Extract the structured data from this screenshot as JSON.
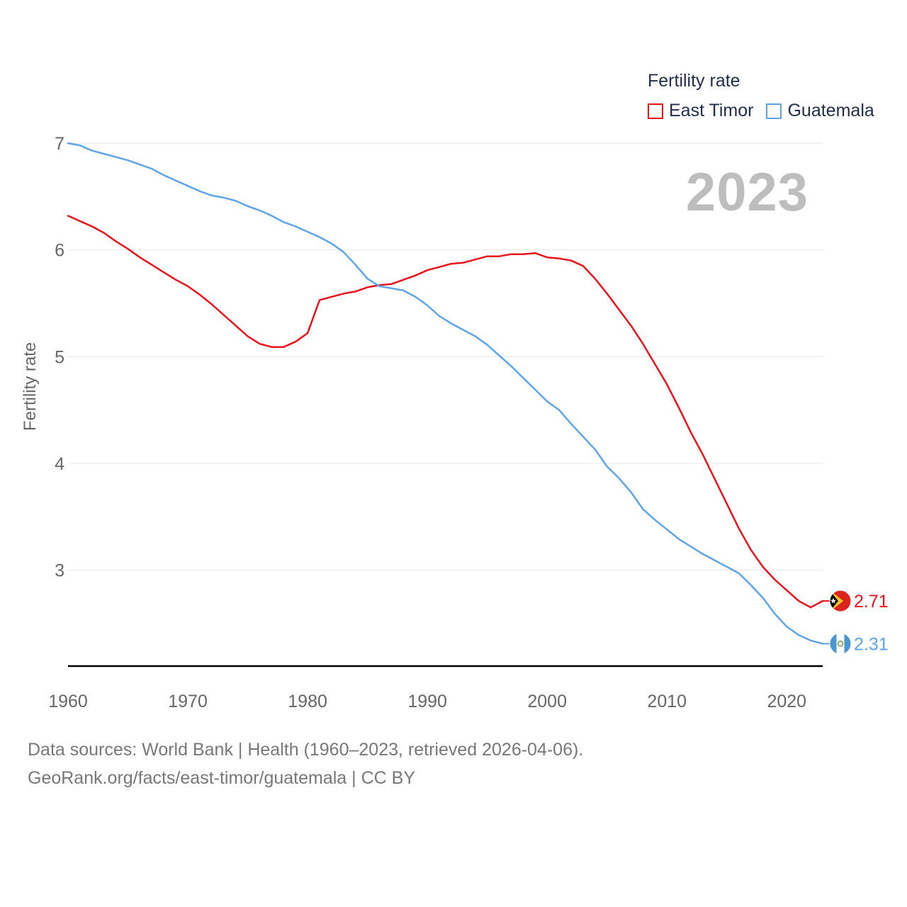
{
  "chart_data": {
    "type": "line",
    "legend_title": "Fertility rate",
    "ylabel": "Fertility rate",
    "xlabel": "",
    "ylim": [
      2.1,
      7.1
    ],
    "xlim": [
      1960,
      2023
    ],
    "y_ticks": [
      3,
      4,
      5,
      6,
      7
    ],
    "x_ticks": [
      1960,
      1970,
      1980,
      1990,
      2000,
      2010,
      2020
    ],
    "year_label": "2023",
    "grid": true,
    "legend_position": "top-right",
    "x": [
      1960,
      1961,
      1962,
      1963,
      1964,
      1965,
      1966,
      1967,
      1968,
      1969,
      1970,
      1971,
      1972,
      1973,
      1974,
      1975,
      1976,
      1977,
      1978,
      1979,
      1980,
      1981,
      1982,
      1983,
      1984,
      1985,
      1986,
      1987,
      1988,
      1989,
      1990,
      1991,
      1992,
      1993,
      1994,
      1995,
      1996,
      1997,
      1998,
      1999,
      2000,
      2001,
      2002,
      2003,
      2004,
      2005,
      2006,
      2007,
      2008,
      2009,
      2010,
      2011,
      2012,
      2013,
      2014,
      2015,
      2016,
      2017,
      2018,
      2019,
      2020,
      2021,
      2022,
      2023
    ],
    "series": [
      {
        "name": "East Timor",
        "color": "#e8131b",
        "end_label": "2.71",
        "flag_icon": "east-timor-flag-icon",
        "values": [
          6.32,
          6.27,
          6.22,
          6.16,
          6.08,
          6.01,
          5.93,
          5.86,
          5.79,
          5.72,
          5.66,
          5.58,
          5.49,
          5.39,
          5.29,
          5.19,
          5.12,
          5.09,
          5.09,
          5.14,
          5.22,
          5.53,
          5.56,
          5.59,
          5.61,
          5.65,
          5.67,
          5.68,
          5.72,
          5.76,
          5.81,
          5.84,
          5.87,
          5.88,
          5.91,
          5.94,
          5.94,
          5.96,
          5.96,
          5.97,
          5.93,
          5.92,
          5.9,
          5.85,
          5.73,
          5.59,
          5.44,
          5.29,
          5.12,
          4.93,
          4.74,
          4.52,
          4.29,
          4.08,
          3.85,
          3.62,
          3.39,
          3.19,
          3.03,
          2.91,
          2.81,
          2.71,
          2.65,
          2.71
        ]
      },
      {
        "name": "Guatemala",
        "color": "#5da5e8",
        "end_label": "2.31",
        "flag_icon": "guatemala-flag-icon",
        "values": [
          7.0,
          6.98,
          6.93,
          6.9,
          6.87,
          6.84,
          6.8,
          6.76,
          6.7,
          6.65,
          6.6,
          6.55,
          6.51,
          6.49,
          6.46,
          6.41,
          6.37,
          6.32,
          6.26,
          6.22,
          6.17,
          6.12,
          6.06,
          5.98,
          5.86,
          5.73,
          5.66,
          5.64,
          5.62,
          5.56,
          5.48,
          5.38,
          5.31,
          5.25,
          5.19,
          5.11,
          5.01,
          4.91,
          4.8,
          4.69,
          4.58,
          4.5,
          4.37,
          4.25,
          4.13,
          3.97,
          3.86,
          3.73,
          3.57,
          3.47,
          3.38,
          3.29,
          3.22,
          3.15,
          3.09,
          3.03,
          2.97,
          2.86,
          2.74,
          2.59,
          2.47,
          2.39,
          2.34,
          2.31
        ]
      }
    ]
  },
  "footer": {
    "line1": "Data sources: World Bank | Health (1960–2023, retrieved 2026-04-06).",
    "line2": "GeoRank.org/facts/east-timor/guatemala | CC BY"
  }
}
